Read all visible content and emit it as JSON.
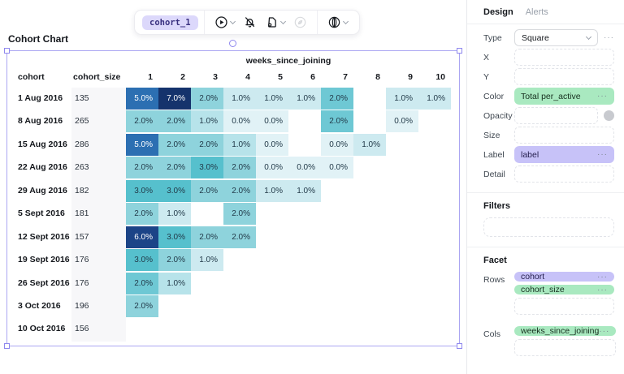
{
  "page_title": "Cohort Chart",
  "toolbar": {
    "cohort_tab": "cohort_1",
    "icons": [
      "play-circle-icon",
      "bell-slash-icon",
      "document-export-icon",
      "leaf-circle-icon",
      "globe-icon"
    ]
  },
  "chart_data": {
    "type": "heatmap",
    "title": "Cohort Chart",
    "col_group_label": "weeks_since_joining",
    "row_header_labels": {
      "cohort": "cohort",
      "cohort_size": "cohort_size"
    },
    "week_columns": [
      "1",
      "2",
      "3",
      "4",
      "5",
      "6",
      "7",
      "8",
      "9",
      "10"
    ],
    "palette": {
      "p7": "#15336c",
      "p6": "#1c4487",
      "p5": "#2c6fb2",
      "p3": "#56c0cd",
      "p2d": "#6ec8d4",
      "p2": "#8ed3dc",
      "p1d": "#b7e3ea",
      "p1": "#cdeaf0",
      "p0": "#e1f2f6"
    },
    "light_text_levels": [
      "p5",
      "p6",
      "p7"
    ],
    "rows": [
      {
        "cohort": "1 Aug 2016",
        "cohort_size": "135",
        "cells": [
          {
            "label": "5.0%",
            "level": "p5"
          },
          {
            "label": "7.0%",
            "level": "p7"
          },
          {
            "label": "2.0%",
            "level": "p2"
          },
          {
            "label": "1.0%",
            "level": "p1"
          },
          {
            "label": "1.0%",
            "level": "p1"
          },
          {
            "label": "1.0%",
            "level": "p1"
          },
          {
            "label": "2.0%",
            "level": "p2d"
          },
          null,
          {
            "label": "1.0%",
            "level": "p1"
          },
          {
            "label": "1.0%",
            "level": "p1"
          }
        ]
      },
      {
        "cohort": "8 Aug 2016",
        "cohort_size": "265",
        "cells": [
          {
            "label": "2.0%",
            "level": "p2"
          },
          {
            "label": "2.0%",
            "level": "p2"
          },
          {
            "label": "1.0%",
            "level": "p1d"
          },
          {
            "label": "0.0%",
            "level": "p0"
          },
          {
            "label": "0.0%",
            "level": "p0"
          },
          null,
          {
            "label": "2.0%",
            "level": "p2d"
          },
          null,
          {
            "label": "0.0%",
            "level": "p0"
          },
          null
        ]
      },
      {
        "cohort": "15 Aug 2016",
        "cohort_size": "286",
        "cells": [
          {
            "label": "5.0%",
            "level": "p5"
          },
          {
            "label": "2.0%",
            "level": "p2"
          },
          {
            "label": "2.0%",
            "level": "p2"
          },
          {
            "label": "1.0%",
            "level": "p1d"
          },
          {
            "label": "0.0%",
            "level": "p0"
          },
          null,
          {
            "label": "0.0%",
            "level": "p0"
          },
          {
            "label": "1.0%",
            "level": "p1"
          },
          null,
          null
        ]
      },
      {
        "cohort": "22 Aug 2016",
        "cohort_size": "263",
        "cells": [
          {
            "label": "2.0%",
            "level": "p2"
          },
          {
            "label": "2.0%",
            "level": "p2"
          },
          {
            "label": "3.0%",
            "level": "p3"
          },
          {
            "label": "2.0%",
            "level": "p2"
          },
          {
            "label": "0.0%",
            "level": "p0"
          },
          {
            "label": "0.0%",
            "level": "p0"
          },
          {
            "label": "0.0%",
            "level": "p0"
          },
          null,
          null,
          null
        ]
      },
      {
        "cohort": "29 Aug 2016",
        "cohort_size": "182",
        "cells": [
          {
            "label": "3.0%",
            "level": "p3"
          },
          {
            "label": "3.0%",
            "level": "p3"
          },
          {
            "label": "2.0%",
            "level": "p2"
          },
          {
            "label": "2.0%",
            "level": "p2"
          },
          {
            "label": "1.0%",
            "level": "p1"
          },
          {
            "label": "1.0%",
            "level": "p1"
          },
          null,
          null,
          null,
          null
        ]
      },
      {
        "cohort": "5 Sept 2016",
        "cohort_size": "181",
        "cells": [
          {
            "label": "2.0%",
            "level": "p2"
          },
          {
            "label": "1.0%",
            "level": "p1"
          },
          null,
          {
            "label": "2.0%",
            "level": "p2"
          },
          null,
          null,
          null,
          null,
          null,
          null
        ]
      },
      {
        "cohort": "12 Sept 2016",
        "cohort_size": "157",
        "cells": [
          {
            "label": "6.0%",
            "level": "p6"
          },
          {
            "label": "3.0%",
            "level": "p3"
          },
          {
            "label": "2.0%",
            "level": "p2"
          },
          {
            "label": "2.0%",
            "level": "p2"
          },
          null,
          null,
          null,
          null,
          null,
          null
        ]
      },
      {
        "cohort": "19 Sept 2016",
        "cohort_size": "176",
        "cells": [
          {
            "label": "3.0%",
            "level": "p3"
          },
          {
            "label": "2.0%",
            "level": "p2"
          },
          {
            "label": "1.0%",
            "level": "p1"
          },
          null,
          null,
          null,
          null,
          null,
          null,
          null
        ]
      },
      {
        "cohort": "26 Sept 2016",
        "cohort_size": "176",
        "cells": [
          {
            "label": "2.0%",
            "level": "p2d"
          },
          {
            "label": "1.0%",
            "level": "p1d"
          },
          null,
          null,
          null,
          null,
          null,
          null,
          null,
          null
        ]
      },
      {
        "cohort": "3 Oct 2016",
        "cohort_size": "196",
        "cells": [
          {
            "label": "2.0%",
            "level": "p2"
          },
          null,
          null,
          null,
          null,
          null,
          null,
          null,
          null,
          null
        ]
      },
      {
        "cohort": "10 Oct 2016",
        "cohort_size": "156",
        "cells": [
          null,
          null,
          null,
          null,
          null,
          null,
          null,
          null,
          null,
          null
        ]
      }
    ]
  },
  "sidebar": {
    "ellipsis": "···",
    "tabs": [
      {
        "label": "Design",
        "active": true
      },
      {
        "label": "Alerts",
        "active": false
      }
    ],
    "design": {
      "type_label": "Type",
      "type_value": "Square",
      "x_label": "X",
      "y_label": "Y",
      "color_label": "Color",
      "color_value": "Total per_active",
      "color_pill_color": "#a9e9c0",
      "opacity_label": "Opacity",
      "size_label": "Size",
      "label_label": "Label",
      "label_value": "label",
      "label_pill_color": "#c7c2f8",
      "detail_label": "Detail"
    },
    "filters": {
      "heading": "Filters"
    },
    "facet": {
      "heading": "Facet",
      "rows_label": "Rows",
      "rows_pills": [
        {
          "label": "cohort",
          "variant": "purple"
        },
        {
          "label": "cohort_size",
          "variant": "green"
        }
      ],
      "cols_label": "Cols",
      "cols_pills": [
        {
          "label": "weeks_since_joining",
          "variant": "green"
        }
      ]
    }
  }
}
